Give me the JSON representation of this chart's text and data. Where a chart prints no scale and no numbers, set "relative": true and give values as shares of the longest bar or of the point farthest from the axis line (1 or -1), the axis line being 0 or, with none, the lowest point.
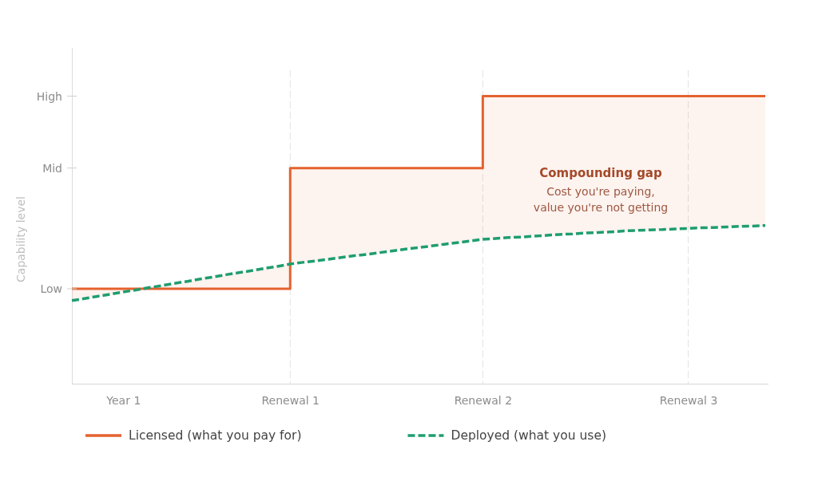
{
  "chart_data": {
    "type": "line",
    "relative": true,
    "ylabel": "Capability level",
    "categories": [
      null,
      null,
      null,
      null,
      "Year 1",
      null,
      null,
      null,
      null,
      null,
      null,
      null,
      null,
      null,
      null,
      null,
      null,
      "Renewal 1",
      null,
      null,
      null,
      null,
      null,
      null,
      null,
      null,
      null,
      null,
      null,
      null,
      null,
      null,
      "Renewal 2",
      null,
      null,
      null,
      null,
      null,
      null,
      null,
      null,
      null,
      null,
      null,
      null,
      null,
      null,
      null,
      "Renewal 3",
      null,
      null,
      null,
      null,
      null,
      null
    ],
    "series": [
      {
        "name": "Licensed (what you pay for)",
        "type": "step",
        "color": "#e5622e",
        "line_style": "solid",
        "values": [
          0.33,
          0.33,
          0.33,
          0.33,
          0.33,
          0.33,
          0.33,
          0.33,
          0.33,
          0.33,
          0.33,
          0.33,
          0.33,
          0.33,
          0.33,
          0.33,
          0.33,
          0.75,
          0.75,
          0.75,
          0.75,
          0.75,
          0.75,
          0.75,
          0.75,
          0.75,
          0.75,
          0.75,
          0.75,
          0.75,
          0.75,
          0.75,
          1,
          1,
          1,
          1,
          1,
          1,
          1,
          1,
          1,
          1,
          1,
          1,
          1,
          1,
          1,
          1,
          1,
          1,
          1,
          1,
          1,
          1,
          1
        ],
        "lower": [
          0.289,
          0.296,
          0.304,
          0.311,
          0.319,
          0.326,
          0.334,
          0.341,
          0.349,
          0.356,
          0.364,
          0.371,
          0.379,
          0.386,
          0.393,
          0.401,
          0.408,
          0.416,
          0.422,
          0.427,
          0.433,
          0.439,
          0.445,
          0.45,
          0.456,
          0.462,
          0.468,
          0.473,
          0.479,
          0.485,
          0.49,
          0.496,
          0.502,
          0.505,
          0.508,
          0.51,
          0.513,
          0.516,
          0.519,
          0.521,
          0.524,
          0.526,
          0.528,
          0.531,
          0.533,
          0.535,
          0.536,
          0.538,
          0.54,
          0.542,
          0.543,
          0.545,
          0.547,
          0.548,
          0.55
        ],
        "upper": [
          0.33,
          0.33,
          0.33,
          0.33,
          0.33,
          0.33,
          0.33,
          0.33,
          0.33,
          0.33,
          0.33,
          0.33,
          0.33,
          0.33,
          0.33,
          0.33,
          0.33,
          0.75,
          0.75,
          0.75,
          0.75,
          0.75,
          0.75,
          0.75,
          0.75,
          0.75,
          0.75,
          0.75,
          0.75,
          0.75,
          0.75,
          0.75,
          1,
          1,
          1,
          1,
          1,
          1,
          1,
          1,
          1,
          1,
          1,
          1,
          1,
          1,
          1,
          1,
          1,
          1,
          1,
          1,
          1,
          1,
          1
        ]
      },
      {
        "name": "Deployed (what you use)",
        "color": "#1f9d6f",
        "line_style": "dashed",
        "values": [
          0.289,
          0.296,
          0.304,
          0.311,
          0.319,
          0.326,
          0.334,
          0.341,
          0.349,
          0.356,
          0.364,
          0.371,
          0.379,
          0.386,
          0.393,
          0.401,
          0.408,
          0.416,
          0.422,
          0.427,
          0.433,
          0.439,
          0.445,
          0.45,
          0.456,
          0.462,
          0.468,
          0.473,
          0.479,
          0.485,
          0.49,
          0.496,
          0.502,
          0.505,
          0.508,
          0.51,
          0.513,
          0.516,
          0.519,
          0.521,
          0.524,
          0.526,
          0.528,
          0.531,
          0.533,
          0.535,
          0.536,
          0.538,
          0.54,
          0.542,
          0.543,
          0.545,
          0.547,
          0.548,
          0.55
        ]
      }
    ],
    "ref_lines": [
      {
        "axis": "x",
        "value": "Renewal 1",
        "color": "#e2e2e2",
        "line_style": "dashed"
      },
      {
        "axis": "x",
        "value": "Renewal 2",
        "color": "#e2e2e2",
        "line_style": "dashed"
      },
      {
        "axis": "x",
        "value": "Renewal 3",
        "color": "#e2e2e2",
        "line_style": "dashed"
      }
    ],
    "annotations": [
      "High",
      "Mid",
      "Low",
      "Compounding gap",
      "Cost you're paying,",
      "value you're not getting"
    ],
    "legend": "bottom"
  }
}
